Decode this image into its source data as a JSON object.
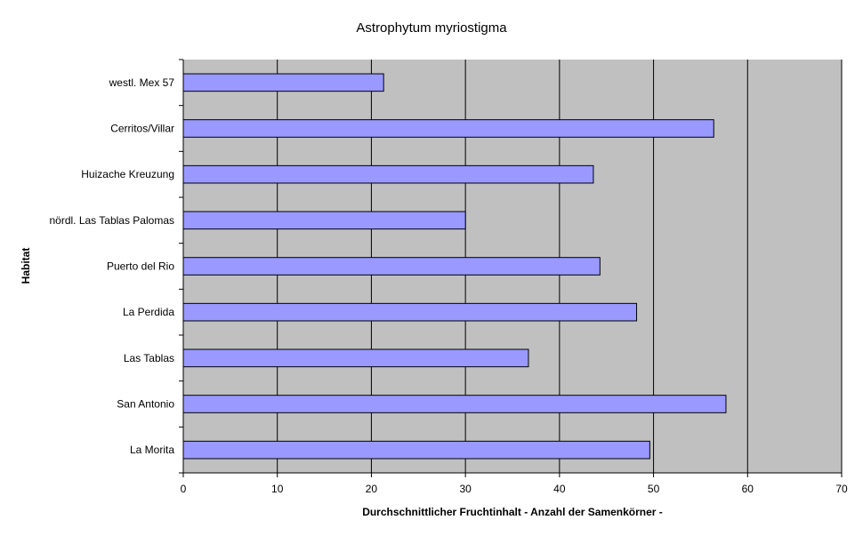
{
  "chart_data": {
    "type": "bar",
    "orientation": "horizontal",
    "title": "Astrophytum myriostigma",
    "xlabel": "Durchschnittlicher Fruchtinhalt - Anzahl der Samenkörner -",
    "ylabel": "Habitat",
    "categories": [
      "westl. Mex 57",
      "Cerritos/Villar",
      "Huizache Kreuzung",
      "nördl. Las Tablas Palomas",
      "Puerto del Rio",
      "La Perdida",
      "Las Tablas",
      "San Antonio",
      "La Morita"
    ],
    "values": [
      21.3,
      56.4,
      43.6,
      30.0,
      44.3,
      48.2,
      36.7,
      57.7,
      49.6
    ],
    "xlim": [
      0,
      70
    ],
    "xticks": [
      "0",
      "10",
      "20",
      "30",
      "40",
      "50",
      "60",
      "70"
    ],
    "grid": true,
    "legend": "none",
    "colors": {
      "bar_fill": "#9999ff",
      "bar_stroke": "#000000",
      "plot_background": "#c0c0c0",
      "gridline": "#000000"
    }
  }
}
